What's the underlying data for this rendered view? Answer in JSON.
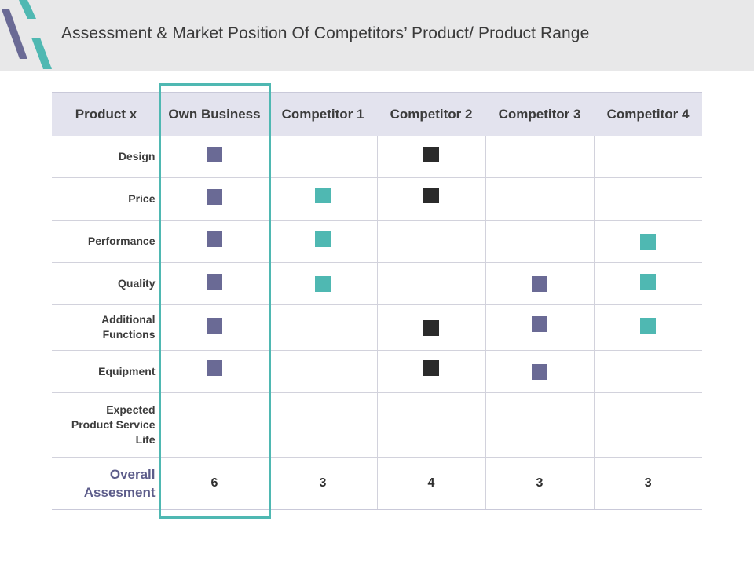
{
  "title": "Assessment & Market Position Of Competitors’ Product/ Product Range",
  "colors": {
    "own": "#6a6a95",
    "teal": "#4fb8b2",
    "dark": "#2b2b2b",
    "highlight": "#4fb8b2"
  },
  "table": {
    "headers": [
      "Product x",
      "Own Business",
      "Competitor 1",
      "Competitor 2",
      "Competitor 3",
      "Competitor 4"
    ],
    "rows": [
      {
        "label": [
          "Design"
        ]
      },
      {
        "label": [
          "Price"
        ]
      },
      {
        "label": [
          "Performance"
        ]
      },
      {
        "label": [
          "Quality"
        ]
      },
      {
        "label": [
          "Additional",
          "Functions"
        ]
      },
      {
        "label": [
          "Equipment"
        ]
      },
      {
        "label": [
          "Expected",
          "Product Service",
          "Life"
        ]
      }
    ],
    "overall": {
      "label": [
        "Overall",
        "Assesment"
      ],
      "scores": [
        "6",
        "3",
        "4",
        "3",
        "3"
      ]
    }
  }
}
